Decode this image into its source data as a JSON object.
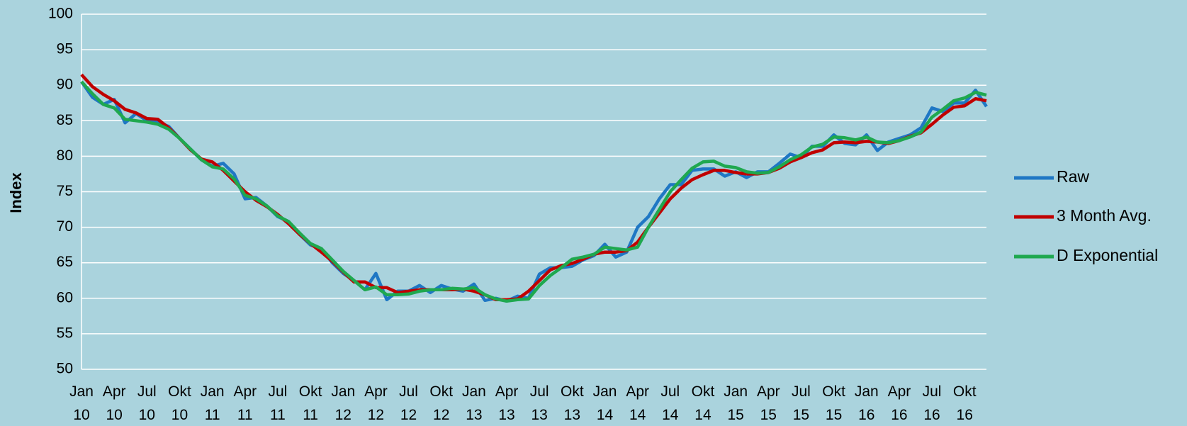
{
  "chart_data": {
    "type": "line",
    "y_label": "Index",
    "categories": [
      "Jan 10",
      null,
      null,
      "Apr 10",
      null,
      null,
      "Jul 10",
      null,
      null,
      "Okt 10",
      null,
      null,
      "Jan 11",
      null,
      null,
      "Apr 11",
      null,
      null,
      "Jul 11",
      null,
      null,
      "Okt 11",
      null,
      null,
      "Jan 12",
      null,
      null,
      "Apr 12",
      null,
      null,
      "Jul 12",
      null,
      null,
      "Okt 12",
      null,
      null,
      "Jan 13",
      null,
      null,
      "Apr 13",
      null,
      null,
      "Jul 13",
      null,
      null,
      "Okt 13",
      null,
      null,
      "Jan 14",
      null,
      null,
      "Apr 14",
      null,
      null,
      "Jul 14",
      null,
      null,
      "Okt 14",
      null,
      null,
      "Jan 15",
      null,
      null,
      "Apr 15",
      null,
      null,
      "Jul 15",
      null,
      null,
      "Okt 15",
      null,
      null,
      "Jan 16",
      null,
      null,
      "Apr 16",
      null,
      null,
      "Jul 16",
      null,
      null,
      "Okt 16",
      null,
      null
    ],
    "series": [
      {
        "name": "Raw",
        "color": "#1f77c4",
        "values": [
          90.5,
          88.3,
          87.3,
          88,
          84.7,
          86,
          85,
          84.8,
          84.2,
          82.5,
          81,
          79.5,
          78.6,
          79,
          77.5,
          74,
          74.2,
          73,
          71.5,
          70.8,
          69,
          67.5,
          67,
          65,
          63.5,
          62.5,
          61.2,
          63.5,
          59.8,
          61,
          61,
          61.8,
          60.8,
          61.8,
          61.3,
          61,
          62,
          59.7,
          60,
          59.6,
          60.3,
          60,
          63.4,
          64.3,
          64.3,
          64.5,
          65.4,
          66,
          67.6,
          65.8,
          66.5,
          70,
          71.5,
          74,
          76,
          76,
          78,
          78.2,
          78.2,
          77.2,
          77.8,
          77,
          77.8,
          77.8,
          79,
          80.3,
          79.8,
          81.4,
          81.4,
          83,
          81.8,
          81.6,
          83,
          80.8,
          82,
          82.5,
          83,
          84,
          86.8,
          86.3,
          87.5,
          87.5,
          89.3,
          87
        ]
      },
      {
        "name": "3 Month Avg.",
        "color": "#c00000",
        "values": [
          91.5,
          89.8,
          88.7,
          87.8,
          86.6,
          86.1,
          85.3,
          85.2,
          84,
          82.5,
          80.9,
          79.6,
          79.2,
          78,
          76.5,
          75,
          73.8,
          72.9,
          71.8,
          70.5,
          69,
          67.7,
          66.5,
          65.2,
          63.7,
          62.3,
          62.3,
          61.5,
          61.5,
          60.8,
          61,
          61.2,
          61.2,
          61.2,
          61.2,
          61.3,
          61,
          60.5,
          59.8,
          59.8,
          59.9,
          61,
          62.5,
          64,
          64.6,
          64.9,
          65.5,
          66.2,
          66.5,
          66.5,
          66.7,
          67.9,
          70,
          72,
          74,
          75.5,
          76.7,
          77.4,
          78,
          78,
          77.7,
          77.5,
          77.5,
          77.7,
          78.3,
          79.2,
          79.8,
          80.5,
          80.9,
          81.9,
          82,
          81.9,
          82.1,
          82,
          81.8,
          82.2,
          82.8,
          83.3,
          84.5,
          85.8,
          86.9,
          87.1,
          88.1,
          87.8
        ]
      },
      {
        "name": "D Exponential",
        "color": "#1fa84f",
        "values": [
          90.5,
          88.8,
          87.3,
          86.8,
          85.2,
          85,
          84.8,
          84.5,
          83.8,
          82.5,
          81,
          79.5,
          78.5,
          78.2,
          76.8,
          74.5,
          74,
          73,
          71.6,
          70.8,
          69.2,
          67.7,
          67,
          65.4,
          63.8,
          62.5,
          61.2,
          61.6,
          60.5,
          60.5,
          60.6,
          61,
          61.2,
          61.2,
          61.4,
          61.3,
          61.5,
          60.5,
          59.9,
          59.6,
          59.8,
          59.9,
          61.8,
          63.2,
          64.3,
          65.5,
          65.8,
          66.2,
          67.2,
          67,
          66.8,
          67.2,
          70,
          72.5,
          75,
          76.7,
          78.3,
          79.2,
          79.3,
          78.6,
          78.4,
          77.8,
          77.6,
          77.7,
          78.5,
          79.5,
          80.2,
          81.3,
          81.7,
          82.7,
          82.6,
          82.3,
          82.7,
          82,
          81.9,
          82.2,
          82.7,
          83.4,
          85.5,
          86.6,
          87.8,
          88.2,
          89,
          88.6
        ]
      }
    ],
    "ylim": [
      50,
      100
    ],
    "yticks": [
      50,
      55,
      60,
      65,
      70,
      75,
      80,
      85,
      90,
      95,
      100
    ],
    "grid": true,
    "legend": "right"
  }
}
